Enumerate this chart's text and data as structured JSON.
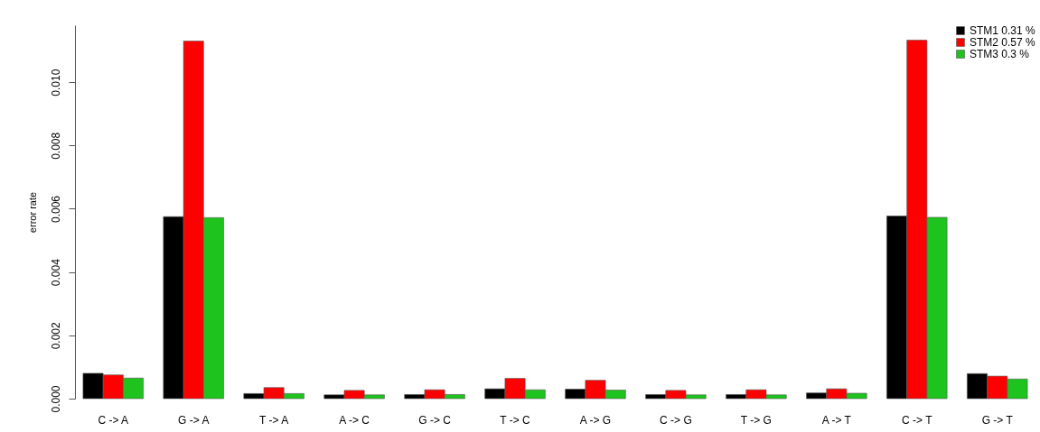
{
  "chart_data": {
    "type": "bar",
    "ylabel": "error rate",
    "categories": [
      "C -> A",
      "G -> A",
      "T -> A",
      "A -> C",
      "G -> C",
      "T -> C",
      "A -> G",
      "C -> G",
      "T -> G",
      "A -> T",
      "C -> T",
      "G -> T"
    ],
    "series": [
      {
        "name": "STM1 0.31 %",
        "color": "#000000",
        "values": [
          0.0008,
          0.00575,
          0.00016,
          0.00012,
          0.00013,
          0.00031,
          0.0003,
          0.00013,
          0.00013,
          0.00018,
          0.00577,
          0.00079
        ]
      },
      {
        "name": "STM2 0.57 %",
        "color": "#ff0000",
        "values": [
          0.00075,
          0.0113,
          0.00035,
          0.00026,
          0.00028,
          0.00064,
          0.00058,
          0.00026,
          0.00028,
          0.00031,
          0.01133,
          0.00071
        ]
      },
      {
        "name": "STM3 0.3 %",
        "color": "#1ec31e",
        "values": [
          0.00065,
          0.00572,
          0.00016,
          0.00012,
          0.00013,
          0.00028,
          0.00027,
          0.00012,
          0.00012,
          0.00017,
          0.00573,
          0.00062
        ]
      }
    ],
    "ylim": [
      0,
      0.0118
    ],
    "yticks": [
      {
        "value": 0,
        "label": "0.000"
      },
      {
        "value": 0.002,
        "label": "0.002"
      },
      {
        "value": 0.004,
        "label": "0.004"
      },
      {
        "value": 0.006,
        "label": "0.006"
      },
      {
        "value": 0.008,
        "label": "0.008"
      },
      {
        "value": 0.01,
        "label": "0.010"
      }
    ],
    "grid": false,
    "legend": "top right"
  }
}
